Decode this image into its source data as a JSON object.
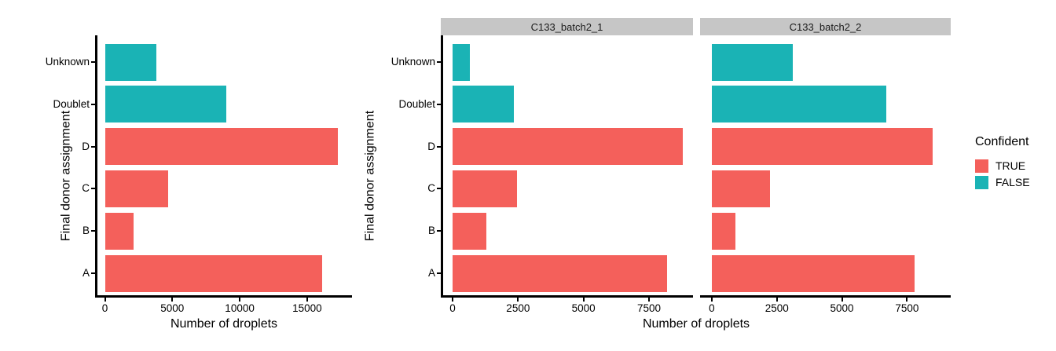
{
  "figure": {
    "x_axis_title": "Number of droplets",
    "y_axis_title": "Final donor assignment",
    "background": "#FFFFFF"
  },
  "colors": {
    "confident_true": "#F4605B",
    "confident_false": "#1AB3B5",
    "strip_bg": "#C6C6C6",
    "axis_line": "#000000"
  },
  "legend": {
    "title": "Confident",
    "position": "right",
    "items": [
      {
        "label": "TRUE",
        "value": true
      },
      {
        "label": "FALSE",
        "value": false
      }
    ]
  },
  "chart_data": [
    {
      "type": "bar",
      "orientation": "horizontal",
      "panel": "",
      "categories": [
        "Unknown",
        "Doublet",
        "D",
        "C",
        "B",
        "A"
      ],
      "values": [
        3800,
        9000,
        17300,
        4700,
        2100,
        16100
      ],
      "confident": [
        false,
        false,
        true,
        true,
        true,
        true
      ],
      "x_ticks": [
        0,
        5000,
        10000,
        15000
      ],
      "xlim": [
        -730,
        18330
      ],
      "xlabel": "Number of droplets",
      "ylabel": "Final donor assignment",
      "grid": false
    },
    {
      "type": "bar",
      "orientation": "horizontal",
      "panel": "C133_batch2_1",
      "categories": [
        "Unknown",
        "Doublet",
        "D",
        "C",
        "B",
        "A"
      ],
      "values": [
        650,
        2350,
        8800,
        2450,
        1300,
        8200
      ],
      "confident": [
        false,
        false,
        true,
        true,
        true,
        true
      ],
      "x_ticks": [
        0,
        2500,
        5000,
        7500
      ],
      "xlim": [
        -450,
        9180
      ],
      "xlabel": "Number of droplets",
      "ylabel": "Final donor assignment",
      "grid": false
    },
    {
      "type": "bar",
      "orientation": "horizontal",
      "panel": "C133_batch2_2",
      "categories": [
        "Unknown",
        "Doublet",
        "D",
        "C",
        "B",
        "A"
      ],
      "values": [
        3100,
        6700,
        8500,
        2250,
        900,
        7800
      ],
      "confident": [
        false,
        false,
        true,
        true,
        true,
        true
      ],
      "x_ticks": [
        0,
        2500,
        5000,
        7500
      ],
      "xlim": [
        -450,
        9180
      ],
      "xlabel": "Number of droplets",
      "ylabel": "Final donor assignment",
      "grid": false
    }
  ]
}
